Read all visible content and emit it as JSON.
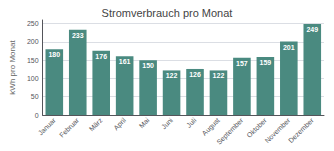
{
  "chart_data": {
    "type": "bar",
    "title": "Stromverbrauch pro Monat",
    "categories": [
      "Januar",
      "Februar",
      "März",
      "April",
      "Mai",
      "Juni",
      "Juli",
      "August",
      "September",
      "Oktober",
      "November",
      "Dezember"
    ],
    "values": [
      180,
      233,
      176,
      161,
      150,
      122,
      126,
      122,
      157,
      159,
      201,
      249
    ],
    "color": "#4a8a80",
    "ylabel": "kWh pro Monat",
    "ylim": [
      0,
      260
    ],
    "yticks": [
      0,
      50,
      100,
      150,
      200,
      250
    ],
    "grid": true,
    "data_labels": true
  }
}
